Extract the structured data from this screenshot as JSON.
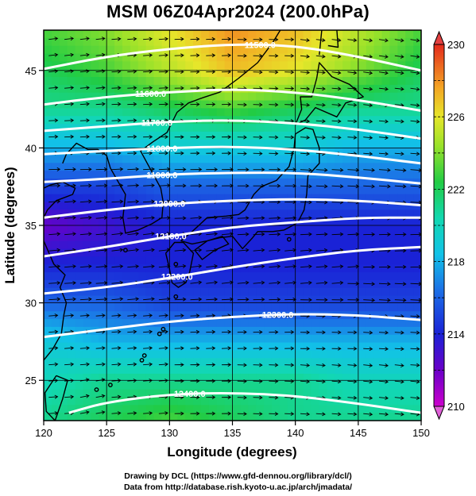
{
  "title": "MSM 06Z04Apr2024 (200.0hPa)",
  "credit_line1": "Drawing by DCL (https://www.gfd-dennou.org/library/dcl/)",
  "credit_line2": "Data from http://database.rish.kyoto-u.ac.jp/arch/jmadata/",
  "colors": {
    "coastline": "#000000",
    "contour": "#ffffff",
    "wind_arrow": "#000000",
    "map_frame": "#000000"
  },
  "chart_data": {
    "type": "heatmap",
    "map_projection": "lat-lon",
    "xlabel": "Longitude (degrees)",
    "ylabel": "Latitude  (degrees)",
    "xlim": [
      120,
      150
    ],
    "ylim": [
      22.4,
      47.6
    ],
    "x_ticks": [
      "120",
      "125",
      "130",
      "135",
      "140",
      "145",
      "150"
    ],
    "y_ticks": [
      "25",
      "30",
      "35",
      "40",
      "45"
    ],
    "colorbar": {
      "range": [
        210,
        230
      ],
      "ticks": [
        "210",
        "214",
        "218",
        "222",
        "226",
        "230"
      ],
      "colormap": "magenta-blue-cyan-green-yellow-red"
    },
    "contours": [
      {
        "label": "11500.0",
        "label_lon": 137.2,
        "points": [
          [
            120,
            45.1
          ],
          [
            125,
            45.9
          ],
          [
            130,
            46.4
          ],
          [
            135,
            46.7
          ],
          [
            140,
            46.6
          ],
          [
            145,
            45.9
          ],
          [
            150,
            45.0
          ]
        ]
      },
      {
        "label": "11600.0",
        "label_lon": 128.5,
        "points": [
          [
            120,
            42.8
          ],
          [
            125,
            43.3
          ],
          [
            130,
            43.6
          ],
          [
            135,
            43.8
          ],
          [
            140,
            43.6
          ],
          [
            145,
            43.1
          ],
          [
            150,
            42.4
          ]
        ]
      },
      {
        "label": "11700.0",
        "label_lon": 129.0,
        "points": [
          [
            120,
            41.1
          ],
          [
            125,
            41.4
          ],
          [
            130,
            41.7
          ],
          [
            135,
            41.8
          ],
          [
            140,
            41.6
          ],
          [
            145,
            41.2
          ],
          [
            150,
            40.6
          ]
        ]
      },
      {
        "label": "11800.0",
        "label_lon": 129.4,
        "points": [
          [
            120,
            39.6
          ],
          [
            125,
            39.8
          ],
          [
            130,
            40.0
          ],
          [
            135,
            40.1
          ],
          [
            140,
            39.9
          ],
          [
            145,
            39.5
          ],
          [
            150,
            39.0
          ]
        ]
      },
      {
        "label": "11900.0",
        "label_lon": 129.4,
        "points": [
          [
            120,
            37.8
          ],
          [
            125,
            38.0
          ],
          [
            130,
            38.3
          ],
          [
            135,
            38.4
          ],
          [
            140,
            38.4
          ],
          [
            145,
            38.1
          ],
          [
            150,
            37.7
          ]
        ]
      },
      {
        "label": "12000.0",
        "label_lon": 130.0,
        "points": [
          [
            120,
            35.5
          ],
          [
            125,
            36.0
          ],
          [
            130,
            36.4
          ],
          [
            135,
            36.6
          ],
          [
            140,
            36.7
          ],
          [
            145,
            36.6
          ],
          [
            150,
            36.3
          ]
        ]
      },
      {
        "label": "12100.0",
        "label_lon": 130.1,
        "points": [
          [
            120,
            33.0
          ],
          [
            125,
            33.6
          ],
          [
            130,
            34.3
          ],
          [
            135,
            34.9
          ],
          [
            140,
            35.2
          ],
          [
            145,
            35.5
          ],
          [
            150,
            35.5
          ]
        ]
      },
      {
        "label": "12200.0",
        "label_lon": 130.6,
        "points": [
          [
            120,
            30.6
          ],
          [
            125,
            31.0
          ],
          [
            130,
            31.6
          ],
          [
            135,
            32.3
          ],
          [
            140,
            32.9
          ],
          [
            145,
            33.4
          ],
          [
            150,
            33.6
          ]
        ]
      },
      {
        "label": "12300.0",
        "label_lon": 138.6,
        "points": [
          [
            120,
            27.8
          ],
          [
            125,
            28.3
          ],
          [
            130,
            28.8
          ],
          [
            135,
            29.1
          ],
          [
            140,
            29.3
          ],
          [
            145,
            29.2
          ],
          [
            150,
            28.9
          ]
        ]
      },
      {
        "label": "12400.0",
        "label_lon": 131.6,
        "points": [
          [
            122,
            22.9
          ],
          [
            125,
            23.6
          ],
          [
            130,
            24.1
          ],
          [
            135,
            24.2
          ],
          [
            140,
            24.0
          ],
          [
            145,
            23.5
          ],
          [
            150,
            22.9
          ]
        ]
      }
    ],
    "temperature_field_K": {
      "lats": [
        47.5,
        45,
        42.5,
        40,
        37.5,
        35,
        32.5,
        30,
        27.5,
        25,
        22.5
      ],
      "lons": [
        120,
        125,
        130,
        135,
        140,
        145,
        150
      ],
      "values": [
        [
          223,
          224,
          226,
          228,
          227,
          225,
          223
        ],
        [
          222,
          223,
          225,
          227,
          226,
          224,
          222
        ],
        [
          221,
          221,
          222,
          223,
          222,
          221,
          221
        ],
        [
          218,
          218,
          219,
          219,
          219,
          218,
          218
        ],
        [
          215,
          215,
          216,
          216,
          216,
          216,
          216
        ],
        [
          212,
          213,
          214,
          214,
          214,
          214,
          214
        ],
        [
          214,
          214,
          214,
          214,
          214,
          214,
          214
        ],
        [
          216,
          216,
          215,
          215,
          215,
          215,
          215
        ],
        [
          219,
          218,
          218,
          218,
          218,
          218,
          218
        ],
        [
          220,
          221,
          221,
          221,
          221,
          220,
          220
        ],
        [
          221,
          222,
          223,
          222,
          221,
          221,
          221
        ]
      ]
    }
  }
}
